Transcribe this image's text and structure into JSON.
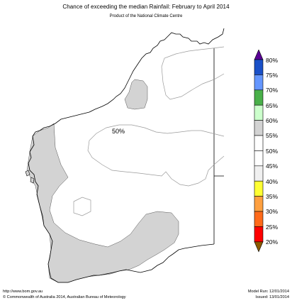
{
  "header": {
    "title": "Chance of exceeding the median Rainfail: February to April 2014",
    "subtitle": "Product of the National Climate Centre"
  },
  "map": {
    "region_label": "50%",
    "colors": {
      "land_neutral": "#ffffff",
      "land_shaded": "#d3d3d3",
      "coastline": "#000000",
      "contour": "#9a9a9a"
    }
  },
  "legend": {
    "labels": [
      "80%",
      "75%",
      "70%",
      "65%",
      "60%",
      "55%",
      "50%",
      "45%",
      "40%",
      "35%",
      "30%",
      "25%",
      "20%"
    ],
    "bins": [
      {
        "color": "#5a0096"
      },
      {
        "color": "#1a50c8"
      },
      {
        "color": "#6496ff"
      },
      {
        "color": "#4ab04a"
      },
      {
        "color": "#ccffcc"
      },
      {
        "color": "#d3d3d3"
      },
      {
        "color": "#ffffff"
      },
      {
        "color": "#ffffff"
      },
      {
        "color": "#f0f0f0"
      },
      {
        "color": "#ffff33"
      },
      {
        "color": "#ffa040"
      },
      {
        "color": "#ff6a1a"
      },
      {
        "color": "#ff0000"
      },
      {
        "color": "#8b5a00"
      }
    ]
  },
  "footer": {
    "website": "http://www.bom.gov.au",
    "copyright": "©  Commonwealth of Australia 2014, Australian Bureau of Meteorology",
    "model_run": "Model Run: 12/01/2014",
    "issued": "Issued: 13/01/2014"
  }
}
